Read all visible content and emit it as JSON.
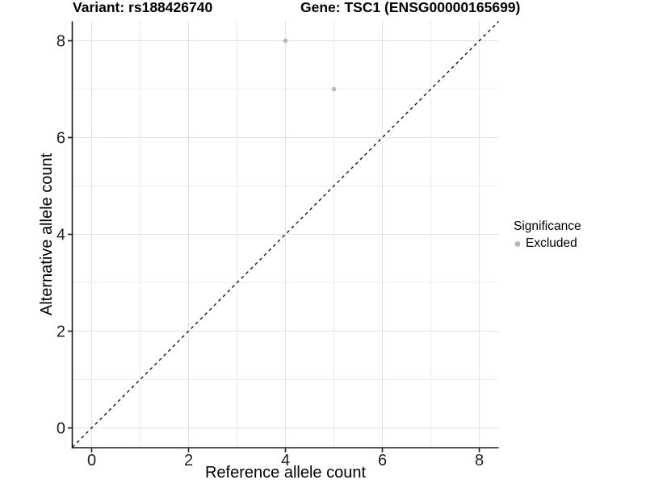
{
  "chart_data": {
    "type": "scatter",
    "title_left": "Variant: rs188426740",
    "title_right": "Gene: TSC1 (ENSG00000165699)",
    "xlabel": "Reference allele count",
    "ylabel": "Alternative allele count",
    "xlim": [
      -0.4,
      8.4
    ],
    "ylim": [
      -0.4,
      8.4
    ],
    "x_ticks": [
      0,
      2,
      4,
      6,
      8
    ],
    "y_ticks": [
      0,
      2,
      4,
      6,
      8
    ],
    "x_tick_labels": [
      "0",
      "2",
      "4",
      "6",
      "8"
    ],
    "y_tick_labels_top_to_bottom": [
      "8",
      "6",
      "4",
      "2",
      "0"
    ],
    "grid": {
      "major": "on",
      "minor": "on",
      "major_color": "#e2e2e2",
      "minor_color": "#ececec"
    },
    "reference_line": {
      "style": "dashed",
      "equation": "y = x",
      "color": "#161616"
    },
    "series": [
      {
        "name": "Excluded",
        "marker": "circle",
        "color": "#b9b9b9",
        "points": [
          [
            4,
            8
          ],
          [
            5,
            7
          ]
        ]
      }
    ],
    "legend": {
      "title": "Significance",
      "position": "right",
      "items": [
        {
          "label": "Excluded",
          "color": "#b4b4b4",
          "marker": "circle"
        }
      ]
    }
  }
}
